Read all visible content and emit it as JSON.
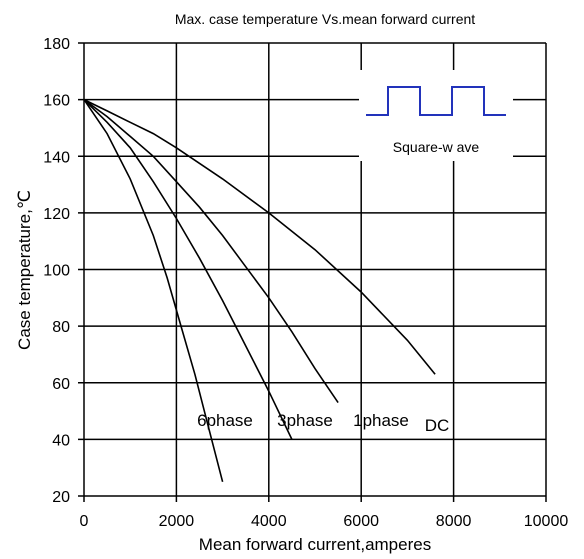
{
  "chart_data": {
    "type": "line",
    "title": "Max. case temperature  Vs.mean forward current",
    "xlabel": "Mean forward  current,amperes",
    "ylabel": "Case temperature,℃",
    "xlim": [
      0,
      10000
    ],
    "ylim": [
      20,
      180
    ],
    "x_ticks": [
      "0",
      "2000",
      "4000",
      "6000",
      "8000",
      "10000"
    ],
    "y_ticks": [
      "20",
      "40",
      "60",
      "80",
      "100",
      "120",
      "140",
      "160",
      "180"
    ],
    "grid": true,
    "inset_label": "Square-w ave",
    "series": [
      {
        "name": "6phase",
        "x": [
          0,
          500,
          1000,
          1500,
          1800,
          2100,
          2400,
          2700,
          3000
        ],
        "y": [
          160,
          148,
          132,
          112,
          97,
          80,
          63,
          44,
          25
        ]
      },
      {
        "name": "3phase",
        "x": [
          0,
          500,
          1000,
          1500,
          2000,
          2500,
          3000,
          3500,
          4000,
          4500
        ],
        "y": [
          160,
          152,
          143,
          131,
          118,
          104,
          89,
          73,
          57,
          40
        ]
      },
      {
        "name": "1phase",
        "x": [
          0,
          500,
          1000,
          1500,
          2000,
          2500,
          3000,
          3500,
          4000,
          4500,
          5000,
          5500
        ],
        "y": [
          160,
          154,
          147,
          140,
          131,
          122,
          112,
          101,
          90,
          78,
          65,
          53
        ]
      },
      {
        "name": "DC",
        "x": [
          0,
          500,
          1000,
          1500,
          2000,
          3000,
          4000,
          5000,
          6000,
          7000,
          7600
        ],
        "y": [
          160,
          156,
          152,
          148,
          143,
          132,
          120,
          107,
          92,
          75,
          63
        ]
      }
    ],
    "series_labels": [
      "6phase",
      "3phase",
      "1phase",
      "DC"
    ]
  }
}
